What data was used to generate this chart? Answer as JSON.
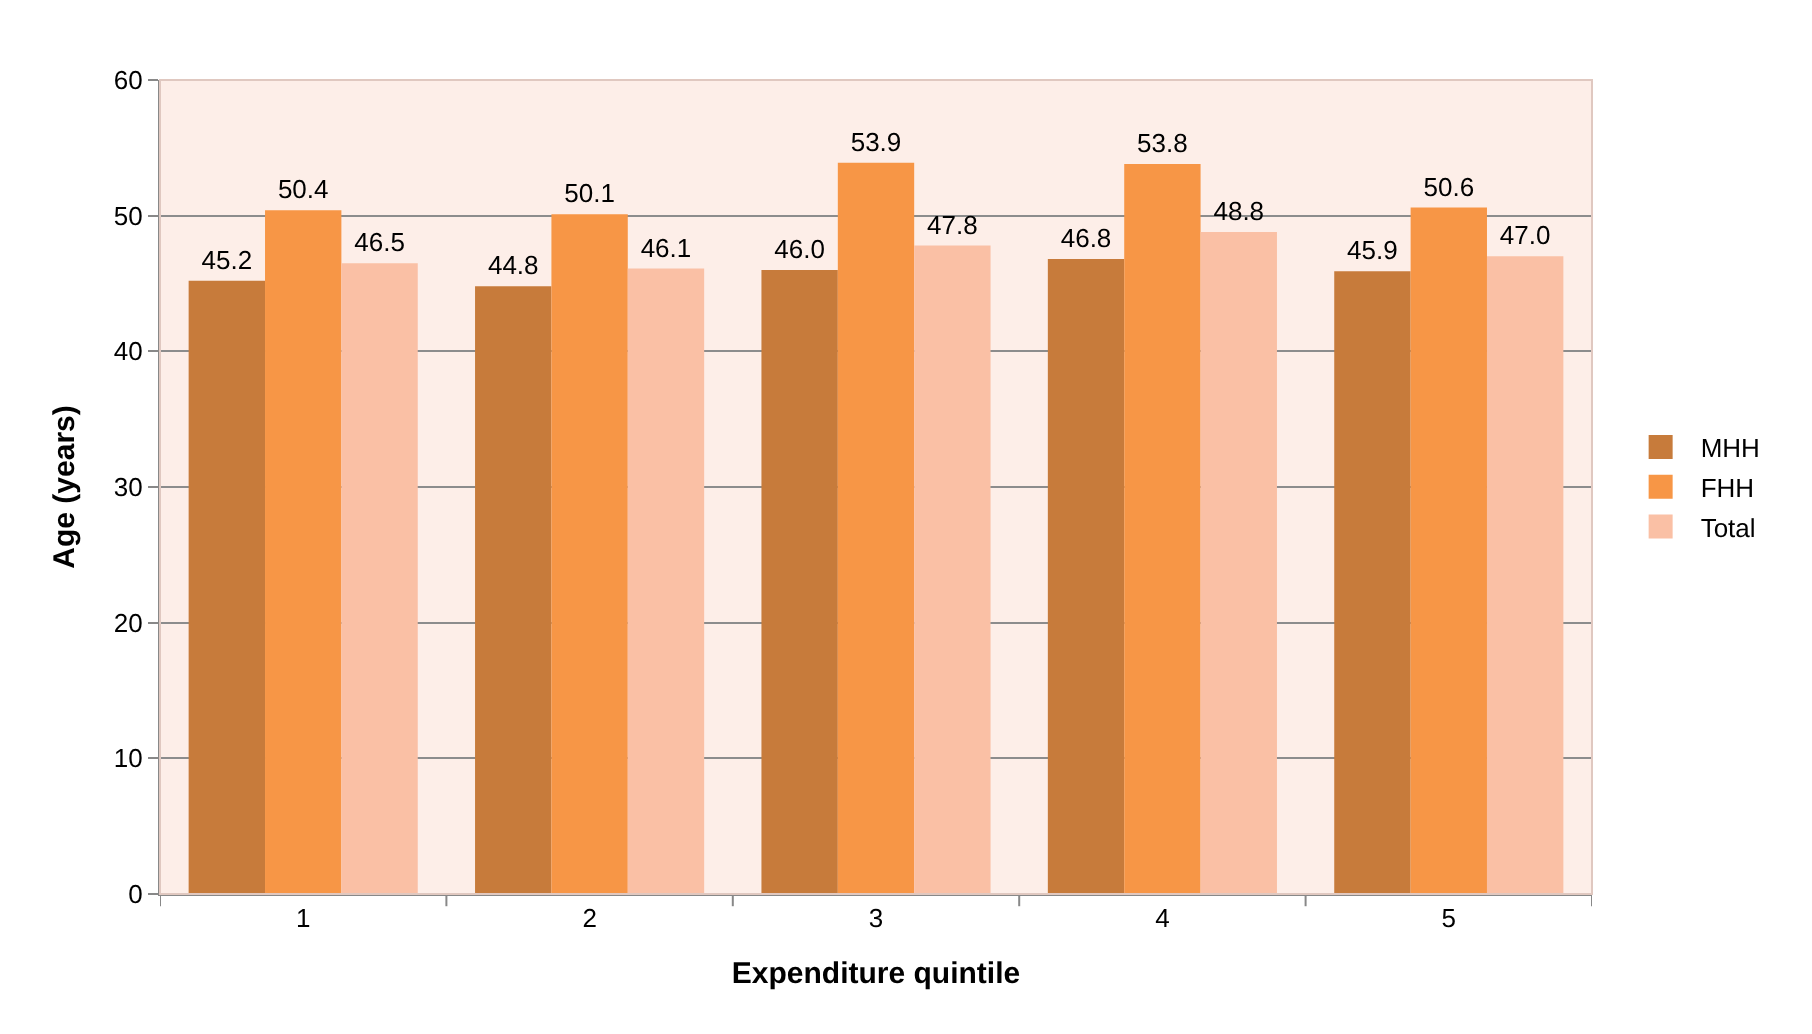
{
  "chart_data": {
    "type": "bar",
    "xlabel": "Expenditure quintile",
    "ylabel": "Age (years)",
    "categories": [
      "1",
      "2",
      "3",
      "4",
      "5"
    ],
    "series": [
      {
        "name": "MHH",
        "color": "#c77b3b",
        "values": [
          45.2,
          44.8,
          46.0,
          46.8,
          45.9
        ],
        "value_labels": [
          "45.2",
          "44.8",
          "46.0",
          "46.8",
          "45.9"
        ]
      },
      {
        "name": "FHH",
        "color": "#f79646",
        "values": [
          50.4,
          50.1,
          53.9,
          53.8,
          50.6
        ],
        "value_labels": [
          "50.4",
          "50.1",
          "53.9",
          "53.8",
          "50.6"
        ]
      },
      {
        "name": "Total",
        "color": "#fac0a5",
        "values": [
          46.5,
          46.1,
          47.8,
          48.8,
          47.0
        ],
        "value_labels": [
          "46.5",
          "46.1",
          "47.8",
          "48.8",
          "47.0"
        ]
      }
    ],
    "ylim": [
      0,
      60
    ],
    "yticks": [
      0,
      10,
      20,
      30,
      40,
      50,
      60
    ],
    "grid": "y",
    "legend": "right"
  }
}
